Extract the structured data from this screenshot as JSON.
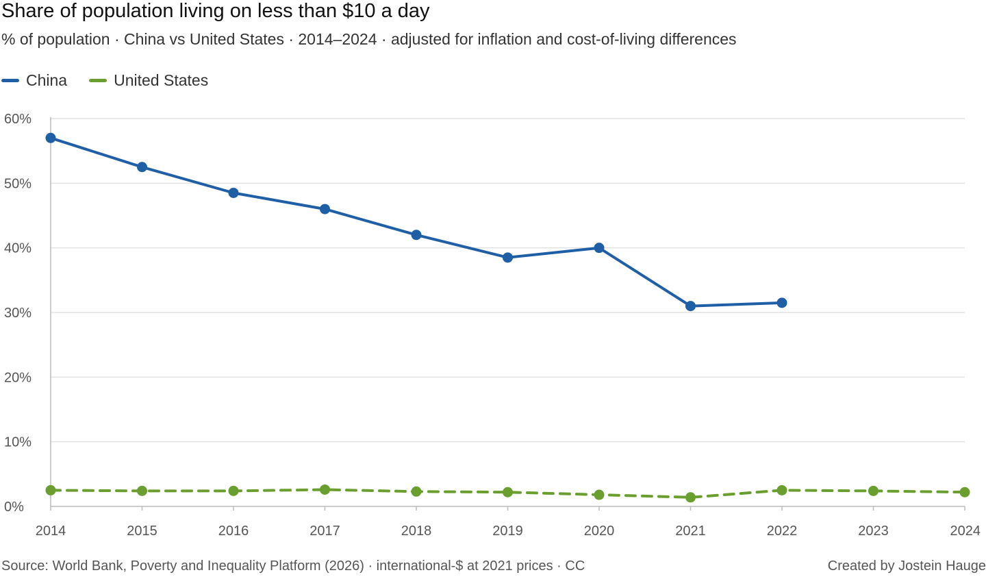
{
  "header": {
    "title": "Share of population living on less than $10 a day",
    "subtitle": "% of population · China vs United States · 2014–2024 · adjusted for inflation and cost-of-living differences"
  },
  "footer": {
    "source": "Source: World Bank, Poverty and Inequality Platform (2026) · international-$ at 2021 prices · CC",
    "credit": "Created by Jostein Hauge"
  },
  "colors": {
    "china": "#1f5fa6",
    "us": "#6a9e2f",
    "grid": "#e2e2e2",
    "axis": "#bbbbbb"
  },
  "chart_data": {
    "type": "line",
    "x": [
      "2014",
      "2015",
      "2016",
      "2017",
      "2018",
      "2019",
      "2020",
      "2021",
      "2022",
      "2023",
      "2024"
    ],
    "ylim": [
      0,
      60
    ],
    "yticks": [
      "0%",
      "10%",
      "20%",
      "30%",
      "40%",
      "50%",
      "60%"
    ],
    "grid": true,
    "legend_position": "top-left",
    "series": [
      {
        "name": "China",
        "style": "solid",
        "values": [
          57,
          52.5,
          48.5,
          46,
          42,
          38.5,
          40,
          31,
          31.5,
          null,
          null
        ]
      },
      {
        "name": "United States",
        "style": "dashed",
        "values": [
          2.5,
          2.4,
          2.4,
          2.6,
          2.3,
          2.2,
          1.8,
          1.4,
          2.5,
          2.4,
          2.2
        ]
      }
    ]
  }
}
